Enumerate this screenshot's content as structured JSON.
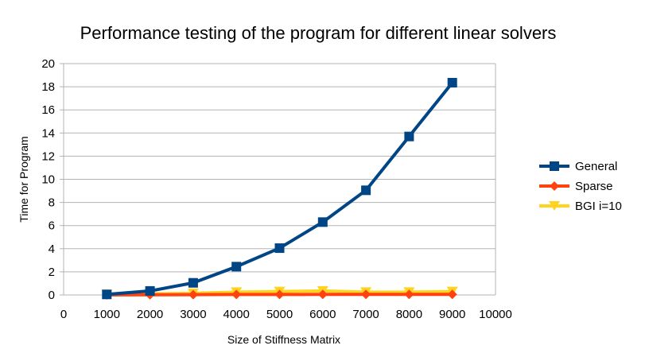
{
  "chart_data": {
    "type": "line",
    "title": "Performance testing of the program for different linear solvers",
    "xlabel": "Size of Stiffness Matrix",
    "ylabel": "Time for Program",
    "xlim": [
      0,
      10000
    ],
    "ylim": [
      0,
      20
    ],
    "x_ticks": [
      0,
      1000,
      2000,
      3000,
      4000,
      5000,
      6000,
      7000,
      8000,
      9000,
      10000
    ],
    "y_ticks": [
      0,
      2,
      4,
      6,
      8,
      10,
      12,
      14,
      16,
      18,
      20
    ],
    "grid": true,
    "legend_position": "right",
    "x": [
      1000,
      2000,
      3000,
      4000,
      5000,
      6000,
      7000,
      8000,
      9000
    ],
    "series": [
      {
        "name": "General",
        "color": "#004586",
        "marker": "square",
        "values": [
          0.05,
          0.35,
          1.05,
          2.45,
          4.05,
          6.3,
          9.05,
          13.7,
          18.35
        ]
      },
      {
        "name": "Sparse",
        "color": "#ff420e",
        "marker": "diamond",
        "values": [
          0.01,
          0.02,
          0.03,
          0.04,
          0.04,
          0.05,
          0.05,
          0.05,
          0.05
        ]
      },
      {
        "name": "BGI i=10",
        "color": "#ffd320",
        "marker": "triangle-down",
        "values": [
          0.05,
          0.1,
          0.15,
          0.25,
          0.3,
          0.35,
          0.25,
          0.25,
          0.3
        ]
      }
    ]
  }
}
